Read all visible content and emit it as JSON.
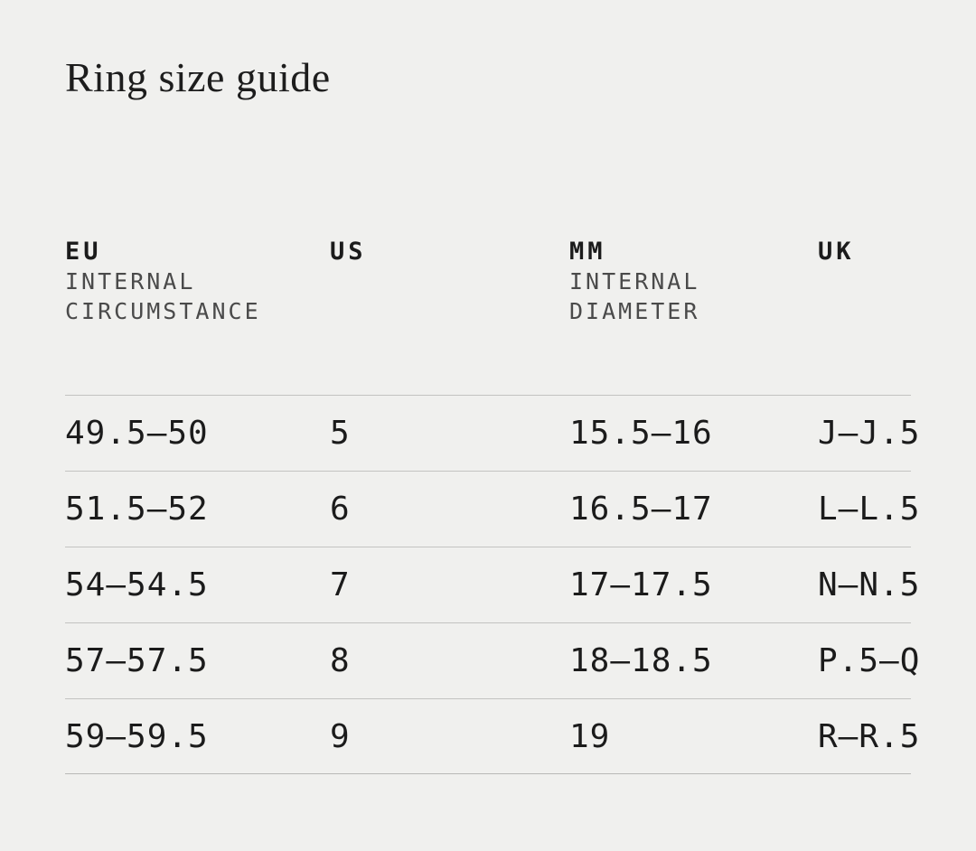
{
  "page": {
    "title": "Ring size guide",
    "background_color": "#f0f0ee",
    "divider_color": "#c3c3c1",
    "text_color": "#1b1b1b",
    "subheader_color": "#4a4a4a"
  },
  "table": {
    "columns": [
      {
        "label": "EU",
        "sublabel": "INTERNAL CIRCUMSTANCE"
      },
      {
        "label": "US",
        "sublabel": ""
      },
      {
        "label": "MM",
        "sublabel": "INTERNAL DIAMETER"
      },
      {
        "label": "UK",
        "sublabel": ""
      }
    ],
    "rows": [
      {
        "eu": "49.5—50",
        "us": "5",
        "mm": "15.5—16",
        "uk": "J—J.5"
      },
      {
        "eu": "51.5—52",
        "us": "6",
        "mm": "16.5—17",
        "uk": "L—L.5"
      },
      {
        "eu": "54—54.5",
        "us": "7",
        "mm": "17—17.5",
        "uk": "N—N.5"
      },
      {
        "eu": "57—57.5",
        "us": "8",
        "mm": "18—18.5",
        "uk": "P.5—Q"
      },
      {
        "eu": "59—59.5",
        "us": "9",
        "mm": "19",
        "uk": "R—R.5"
      }
    ]
  }
}
